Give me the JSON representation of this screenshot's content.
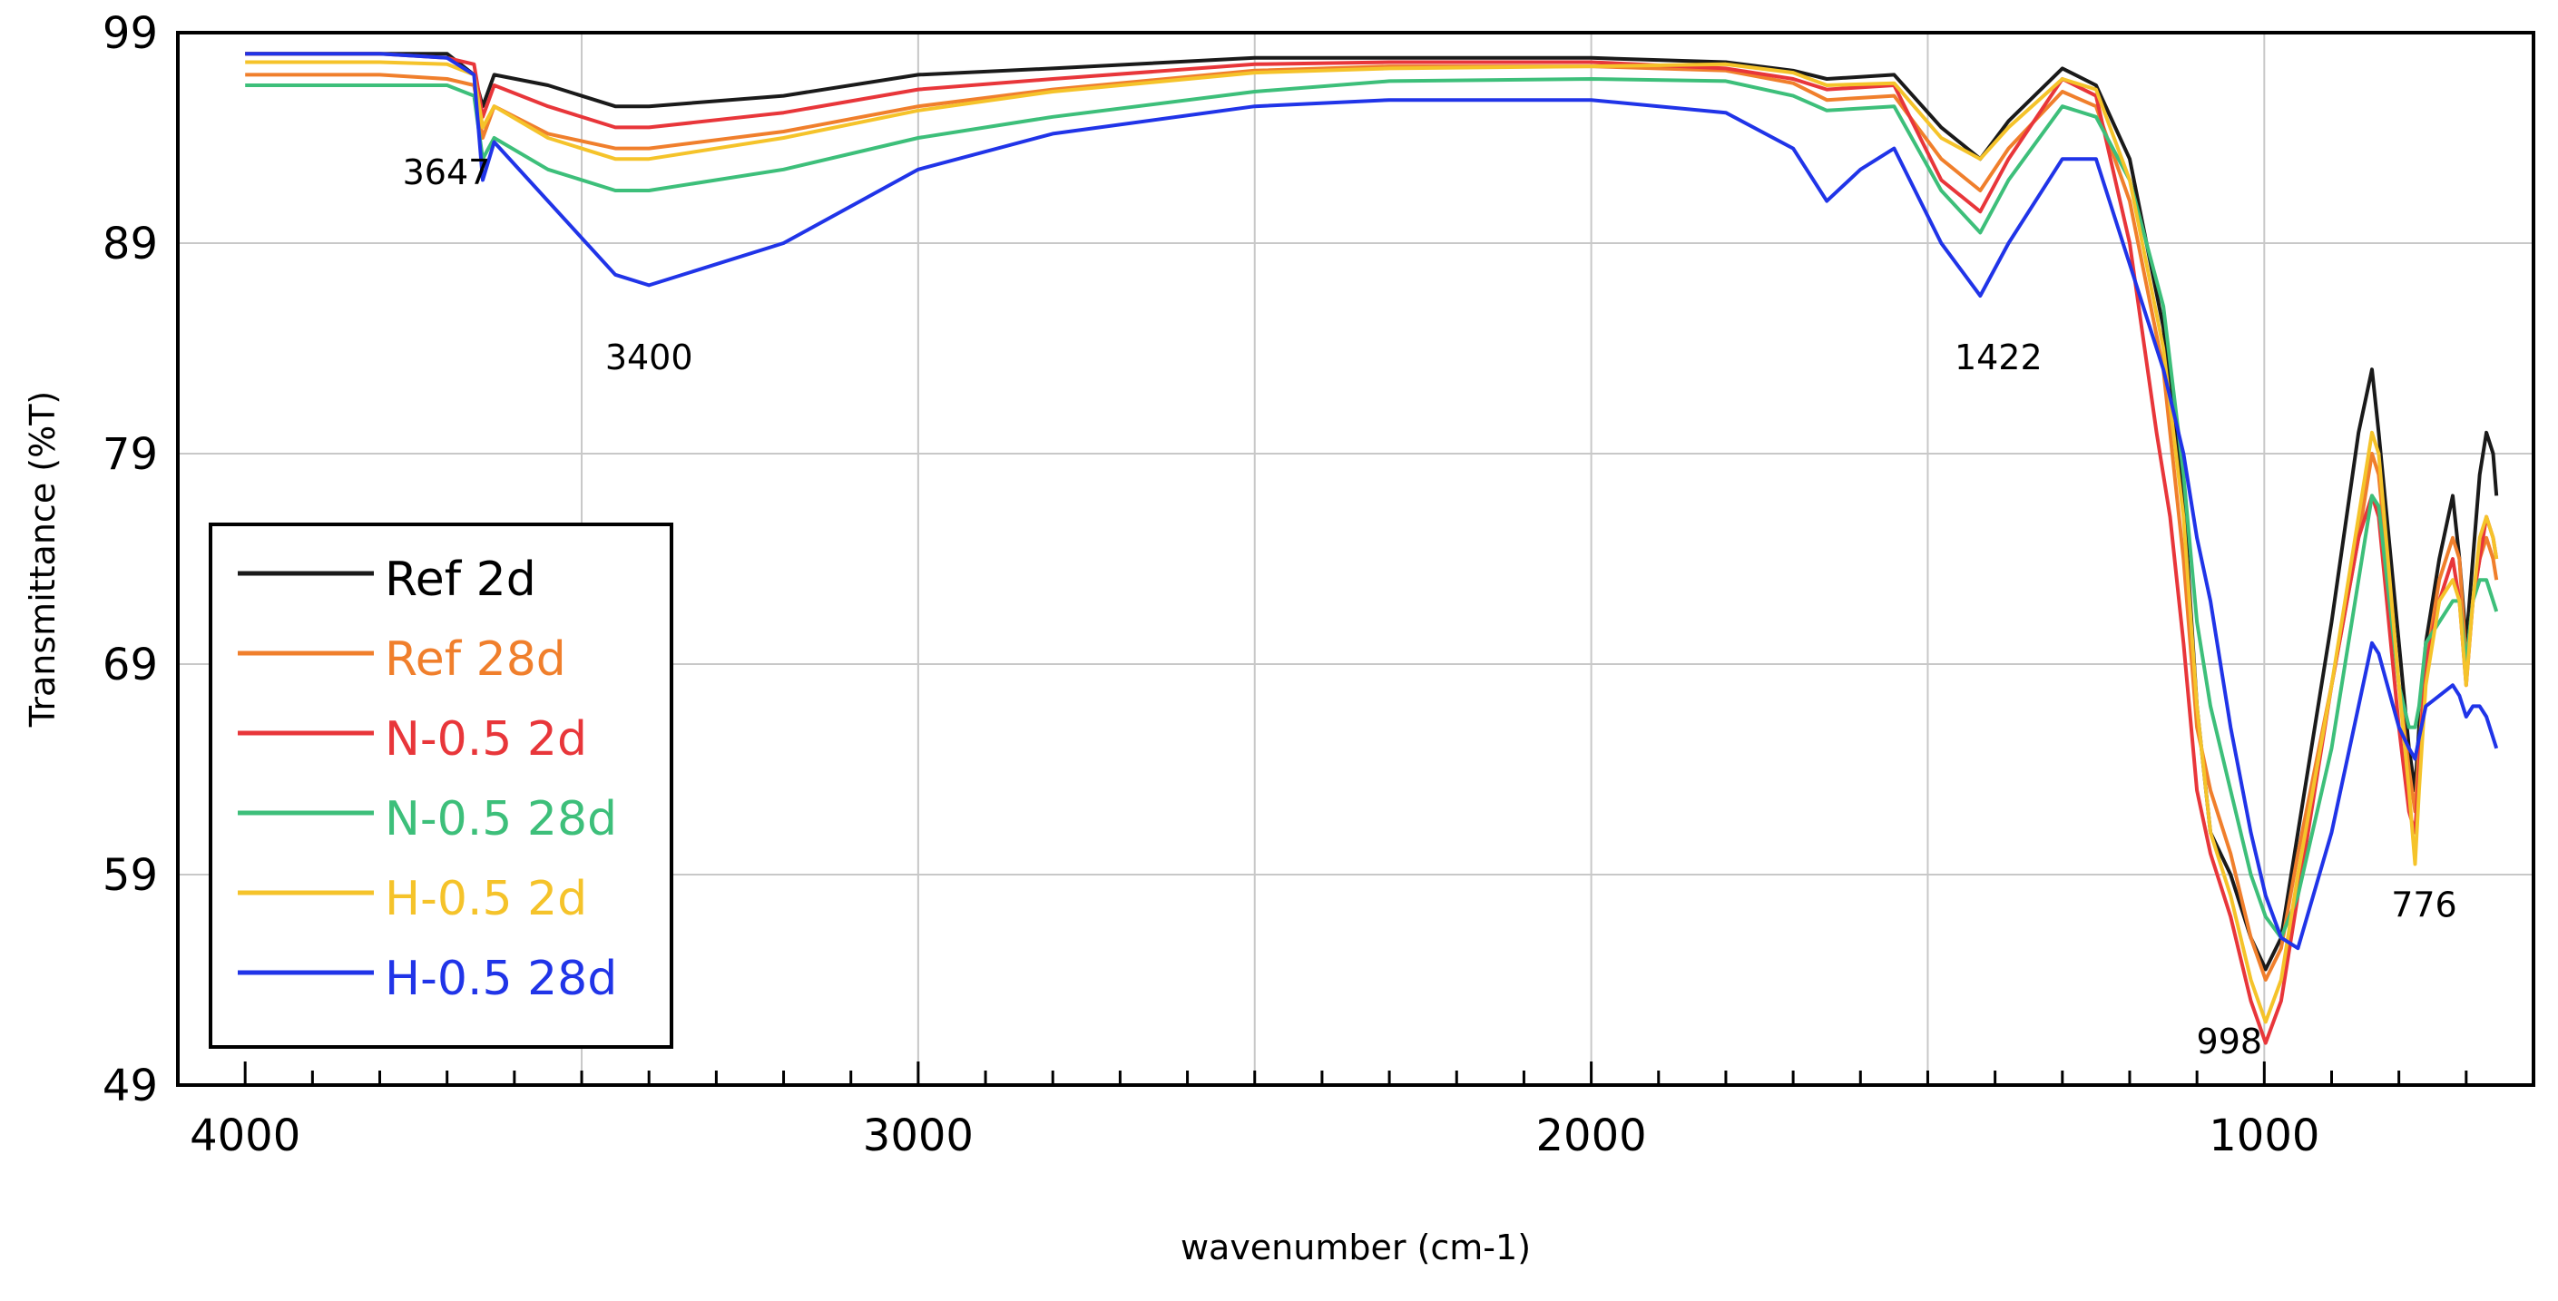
{
  "chart_data": {
    "type": "line",
    "xlabel": "wavenumber (cm-1)",
    "ylabel": "Transmittance (%T)",
    "xlim": [
      4000,
      600
    ],
    "xlim_reversed": true,
    "ylim": [
      49,
      99
    ],
    "x_ticks": [
      "4000",
      "3000",
      "2000",
      "1000"
    ],
    "y_ticks": [
      "49",
      "59",
      "69",
      "79",
      "89",
      "99"
    ],
    "grid": true,
    "legend_position": "bottom-left",
    "annotations": [
      {
        "text": "3647",
        "x": 3647
      },
      {
        "text": "3400",
        "x": 3400
      },
      {
        "text": "1422",
        "x": 1422
      },
      {
        "text": "998",
        "x": 998
      },
      {
        "text": "776",
        "x": 776
      }
    ],
    "series": [
      {
        "name": "Ref 2d",
        "color": "#1a1a1a",
        "points": [
          [
            4000,
            98
          ],
          [
            3800,
            98
          ],
          [
            3700,
            98
          ],
          [
            3660,
            97
          ],
          [
            3647,
            95.5
          ],
          [
            3630,
            97
          ],
          [
            3550,
            96.5
          ],
          [
            3450,
            95.5
          ],
          [
            3400,
            95.5
          ],
          [
            3200,
            96
          ],
          [
            3000,
            97
          ],
          [
            2800,
            97.3
          ],
          [
            2500,
            97.8
          ],
          [
            2300,
            97.8
          ],
          [
            2000,
            97.8
          ],
          [
            1800,
            97.6
          ],
          [
            1700,
            97.2
          ],
          [
            1650,
            96.8
          ],
          [
            1550,
            97
          ],
          [
            1480,
            94.5
          ],
          [
            1422,
            93
          ],
          [
            1380,
            94.8
          ],
          [
            1300,
            97.3
          ],
          [
            1250,
            96.5
          ],
          [
            1200,
            93
          ],
          [
            1150,
            85
          ],
          [
            1120,
            77
          ],
          [
            1100,
            67
          ],
          [
            1080,
            61
          ],
          [
            1050,
            59
          ],
          [
            1020,
            56
          ],
          [
            998,
            54.5
          ],
          [
            975,
            56
          ],
          [
            950,
            61
          ],
          [
            900,
            71
          ],
          [
            860,
            80
          ],
          [
            840,
            83
          ],
          [
            830,
            80
          ],
          [
            800,
            70
          ],
          [
            785,
            65
          ],
          [
            776,
            63
          ],
          [
            770,
            66
          ],
          [
            760,
            70
          ],
          [
            740,
            74
          ],
          [
            720,
            77
          ],
          [
            710,
            74
          ],
          [
            700,
            70
          ],
          [
            690,
            74
          ],
          [
            680,
            78
          ],
          [
            670,
            80
          ],
          [
            660,
            79
          ],
          [
            655,
            77
          ]
        ]
      },
      {
        "name": "Ref 28d",
        "color": "#f07f2c",
        "points": [
          [
            4000,
            97
          ],
          [
            3800,
            97
          ],
          [
            3700,
            96.8
          ],
          [
            3660,
            96.5
          ],
          [
            3647,
            94
          ],
          [
            3630,
            95.5
          ],
          [
            3550,
            94.2
          ],
          [
            3450,
            93.5
          ],
          [
            3400,
            93.5
          ],
          [
            3200,
            94.3
          ],
          [
            3000,
            95.5
          ],
          [
            2800,
            96.3
          ],
          [
            2500,
            97.2
          ],
          [
            2300,
            97.4
          ],
          [
            2000,
            97.4
          ],
          [
            1800,
            97.2
          ],
          [
            1700,
            96.6
          ],
          [
            1650,
            95.8
          ],
          [
            1550,
            96
          ],
          [
            1480,
            93
          ],
          [
            1422,
            91.5
          ],
          [
            1380,
            93.5
          ],
          [
            1300,
            96.2
          ],
          [
            1250,
            95.5
          ],
          [
            1200,
            91
          ],
          [
            1150,
            83
          ],
          [
            1120,
            74
          ],
          [
            1100,
            66
          ],
          [
            1080,
            63
          ],
          [
            1050,
            60
          ],
          [
            1020,
            56
          ],
          [
            998,
            54
          ],
          [
            975,
            55.5
          ],
          [
            950,
            60
          ],
          [
            900,
            68
          ],
          [
            860,
            75
          ],
          [
            840,
            79
          ],
          [
            830,
            78
          ],
          [
            800,
            68
          ],
          [
            785,
            64
          ],
          [
            776,
            62
          ],
          [
            770,
            65
          ],
          [
            760,
            69
          ],
          [
            740,
            73
          ],
          [
            720,
            75
          ],
          [
            710,
            74
          ],
          [
            700,
            69
          ],
          [
            690,
            72
          ],
          [
            680,
            74
          ],
          [
            670,
            75
          ],
          [
            660,
            74
          ],
          [
            655,
            73
          ]
        ]
      },
      {
        "name": "N-0.5 2d",
        "color": "#e8363a",
        "points": [
          [
            4000,
            98
          ],
          [
            3800,
            98
          ],
          [
            3700,
            97.8
          ],
          [
            3660,
            97.5
          ],
          [
            3647,
            95
          ],
          [
            3630,
            96.5
          ],
          [
            3550,
            95.5
          ],
          [
            3450,
            94.5
          ],
          [
            3400,
            94.5
          ],
          [
            3200,
            95.2
          ],
          [
            3000,
            96.3
          ],
          [
            2800,
            96.8
          ],
          [
            2500,
            97.5
          ],
          [
            2300,
            97.6
          ],
          [
            2000,
            97.6
          ],
          [
            1800,
            97.3
          ],
          [
            1700,
            96.8
          ],
          [
            1650,
            96.3
          ],
          [
            1550,
            96.5
          ],
          [
            1480,
            92
          ],
          [
            1422,
            90.5
          ],
          [
            1380,
            93
          ],
          [
            1300,
            96.8
          ],
          [
            1250,
            96
          ],
          [
            1200,
            89
          ],
          [
            1160,
            80
          ],
          [
            1140,
            76
          ],
          [
            1120,
            70
          ],
          [
            1100,
            63
          ],
          [
            1080,
            60
          ],
          [
            1050,
            57
          ],
          [
            1020,
            53
          ],
          [
            998,
            51
          ],
          [
            975,
            53
          ],
          [
            950,
            58
          ],
          [
            900,
            68
          ],
          [
            860,
            75
          ],
          [
            840,
            77
          ],
          [
            830,
            76
          ],
          [
            800,
            66
          ],
          [
            785,
            62
          ],
          [
            776,
            61
          ],
          [
            770,
            64
          ],
          [
            760,
            69
          ],
          [
            740,
            72
          ],
          [
            720,
            74
          ],
          [
            710,
            72
          ],
          [
            700,
            68
          ],
          [
            690,
            72
          ],
          [
            680,
            74
          ],
          [
            670,
            76
          ],
          [
            660,
            75
          ],
          [
            655,
            74
          ]
        ]
      },
      {
        "name": "N-0.5 28d",
        "color": "#3dbf7a",
        "points": [
          [
            4000,
            96.5
          ],
          [
            3800,
            96.5
          ],
          [
            3700,
            96.5
          ],
          [
            3660,
            96
          ],
          [
            3647,
            93
          ],
          [
            3630,
            94
          ],
          [
            3550,
            92.5
          ],
          [
            3450,
            91.5
          ],
          [
            3400,
            91.5
          ],
          [
            3200,
            92.5
          ],
          [
            3000,
            94
          ],
          [
            2800,
            95
          ],
          [
            2500,
            96.2
          ],
          [
            2300,
            96.7
          ],
          [
            2000,
            96.8
          ],
          [
            1800,
            96.7
          ],
          [
            1700,
            96
          ],
          [
            1650,
            95.3
          ],
          [
            1550,
            95.5
          ],
          [
            1480,
            91.5
          ],
          [
            1422,
            89.5
          ],
          [
            1380,
            92
          ],
          [
            1300,
            95.5
          ],
          [
            1250,
            95
          ],
          [
            1200,
            92
          ],
          [
            1150,
            86
          ],
          [
            1120,
            78
          ],
          [
            1100,
            71
          ],
          [
            1080,
            67
          ],
          [
            1050,
            63
          ],
          [
            1020,
            59
          ],
          [
            998,
            57
          ],
          [
            975,
            56
          ],
          [
            950,
            58
          ],
          [
            900,
            65
          ],
          [
            860,
            73
          ],
          [
            840,
            77
          ],
          [
            830,
            76.5
          ],
          [
            800,
            68
          ],
          [
            785,
            66
          ],
          [
            776,
            66
          ],
          [
            770,
            67
          ],
          [
            760,
            70
          ],
          [
            740,
            71
          ],
          [
            720,
            72
          ],
          [
            710,
            72
          ],
          [
            700,
            69
          ],
          [
            690,
            72
          ],
          [
            680,
            73
          ],
          [
            670,
            73
          ],
          [
            660,
            72
          ],
          [
            655,
            71.5
          ]
        ]
      },
      {
        "name": "H-0.5 2d",
        "color": "#f5c32a",
        "points": [
          [
            4000,
            97.6
          ],
          [
            3800,
            97.6
          ],
          [
            3700,
            97.5
          ],
          [
            3660,
            97
          ],
          [
            3647,
            94.5
          ],
          [
            3630,
            95.5
          ],
          [
            3550,
            94
          ],
          [
            3450,
            93
          ],
          [
            3400,
            93
          ],
          [
            3200,
            94
          ],
          [
            3000,
            95.3
          ],
          [
            2800,
            96.2
          ],
          [
            2500,
            97.1
          ],
          [
            2300,
            97.3
          ],
          [
            2000,
            97.4
          ],
          [
            1800,
            97.5
          ],
          [
            1700,
            97.1
          ],
          [
            1650,
            96.5
          ],
          [
            1550,
            96.6
          ],
          [
            1480,
            94
          ],
          [
            1422,
            93
          ],
          [
            1380,
            94.5
          ],
          [
            1300,
            96.8
          ],
          [
            1250,
            96.3
          ],
          [
            1200,
            92
          ],
          [
            1150,
            84
          ],
          [
            1120,
            76
          ],
          [
            1100,
            67
          ],
          [
            1080,
            61
          ],
          [
            1050,
            58
          ],
          [
            1020,
            54
          ],
          [
            998,
            52
          ],
          [
            975,
            54
          ],
          [
            950,
            59
          ],
          [
            900,
            68
          ],
          [
            860,
            76
          ],
          [
            840,
            80
          ],
          [
            830,
            79
          ],
          [
            800,
            68
          ],
          [
            785,
            63
          ],
          [
            776,
            59.5
          ],
          [
            770,
            63
          ],
          [
            760,
            68
          ],
          [
            740,
            72
          ],
          [
            720,
            73
          ],
          [
            710,
            72
          ],
          [
            700,
            68
          ],
          [
            690,
            72
          ],
          [
            680,
            75
          ],
          [
            670,
            76
          ],
          [
            660,
            75
          ],
          [
            655,
            74
          ]
        ]
      },
      {
        "name": "H-0.5 28d",
        "color": "#2034e8",
        "points": [
          [
            4000,
            98
          ],
          [
            3800,
            98
          ],
          [
            3700,
            97.8
          ],
          [
            3660,
            97
          ],
          [
            3647,
            92
          ],
          [
            3630,
            93.8
          ],
          [
            3550,
            91
          ],
          [
            3450,
            87.5
          ],
          [
            3400,
            87
          ],
          [
            3200,
            89
          ],
          [
            3000,
            92.5
          ],
          [
            2800,
            94.2
          ],
          [
            2500,
            95.5
          ],
          [
            2300,
            95.8
          ],
          [
            2000,
            95.8
          ],
          [
            1800,
            95.2
          ],
          [
            1700,
            93.5
          ],
          [
            1650,
            91
          ],
          [
            1600,
            92.5
          ],
          [
            1550,
            93.5
          ],
          [
            1480,
            89
          ],
          [
            1422,
            86.5
          ],
          [
            1380,
            89
          ],
          [
            1300,
            93
          ],
          [
            1250,
            93
          ],
          [
            1200,
            88
          ],
          [
            1150,
            83
          ],
          [
            1120,
            79
          ],
          [
            1100,
            75
          ],
          [
            1080,
            72
          ],
          [
            1050,
            66
          ],
          [
            1020,
            61
          ],
          [
            998,
            58
          ],
          [
            975,
            56
          ],
          [
            950,
            55.5
          ],
          [
            900,
            61
          ],
          [
            860,
            67
          ],
          [
            840,
            70
          ],
          [
            830,
            69.5
          ],
          [
            800,
            66
          ],
          [
            785,
            65
          ],
          [
            776,
            64.5
          ],
          [
            770,
            65.5
          ],
          [
            760,
            67
          ],
          [
            740,
            67.5
          ],
          [
            720,
            68
          ],
          [
            710,
            67.5
          ],
          [
            700,
            66.5
          ],
          [
            690,
            67
          ],
          [
            680,
            67
          ],
          [
            670,
            66.5
          ],
          [
            660,
            65.5
          ],
          [
            655,
            65
          ]
        ]
      }
    ]
  }
}
